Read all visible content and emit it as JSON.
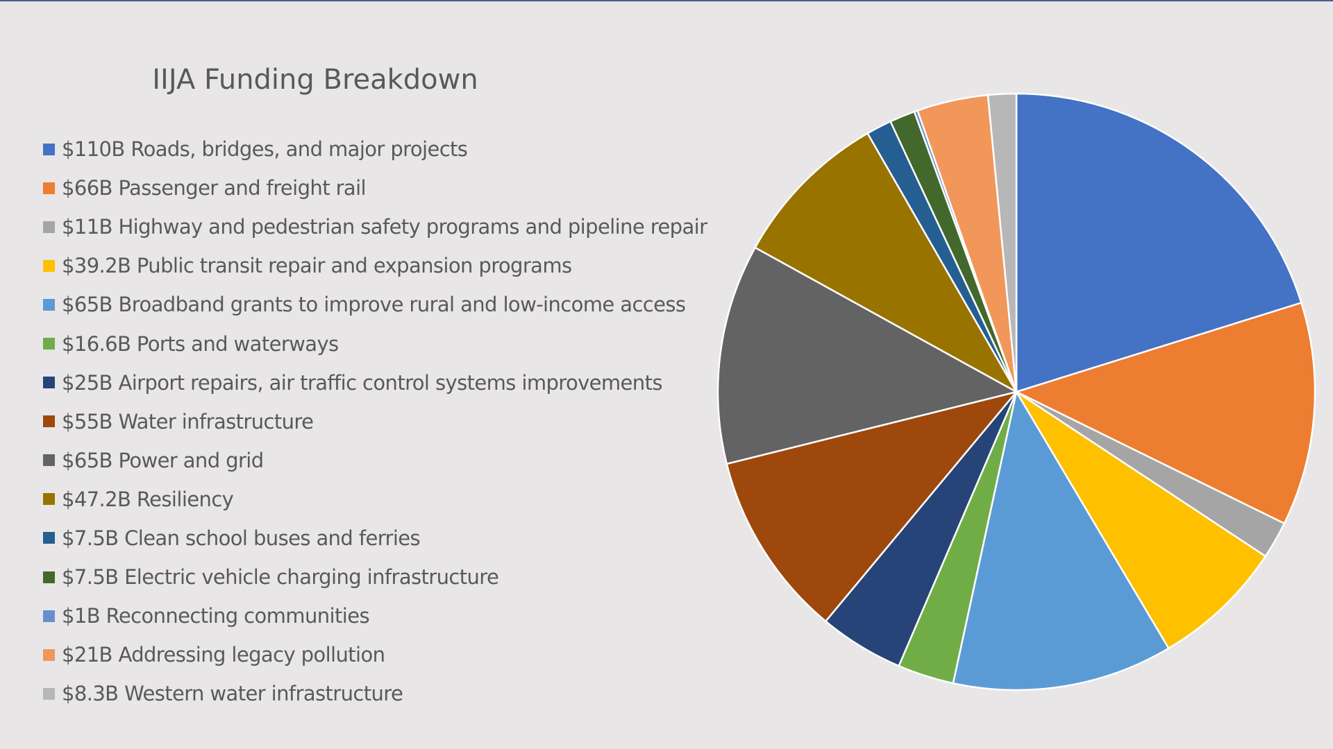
{
  "chart_data": {
    "type": "pie",
    "title": "IIJA Funding Breakdown",
    "legend_position": "left",
    "start_angle_deg": 0,
    "direction": "clockwise",
    "slice_border_color": "#ffffff",
    "categories": [
      "Roads, bridges, and major projects",
      "Passenger and freight rail",
      "Highway and pedestrian safety programs and pipeline repair",
      "Public transit repair and expansion programs",
      "Broadband grants to improve rural and low-income access",
      "Ports and waterways",
      "Airport repairs, air traffic control systems improvements",
      "Water infrastructure",
      "Power and grid",
      "Resiliency",
      "Clean school buses and ferries",
      "Electric vehicle charging infrastructure",
      "Reconnecting communities",
      "Addressing legacy pollution",
      "Western water infrastructure"
    ],
    "values": [
      110,
      66,
      11,
      39.2,
      65,
      16.6,
      25,
      55,
      65,
      47.2,
      7.5,
      7.5,
      1,
      21,
      8.3
    ],
    "units": "$B",
    "legend_labels": [
      "$110B Roads, bridges, and major projects",
      "$66B Passenger and freight rail",
      "$11B Highway and pedestrian safety programs and pipeline repair",
      "$39.2B Public transit repair and expansion programs",
      "$65B Broadband grants to improve rural and low-income access",
      "$16.6B Ports and waterways",
      "$25B Airport repairs, air traffic control systems improvements",
      "$55B Water infrastructure",
      "$65B Power and grid",
      "$47.2B Resiliency",
      "$7.5B Clean school buses and ferries",
      "$7.5B Electric vehicle charging infrastructure",
      "$1B Reconnecting communities",
      "$21B Addressing legacy pollution",
      "$8.3B Western water infrastructure"
    ],
    "colors": [
      "#4472c4",
      "#ed7d31",
      "#a5a5a5",
      "#ffc000",
      "#5b9bd5",
      "#70ad47",
      "#264478",
      "#9e480e",
      "#636363",
      "#997300",
      "#255e91",
      "#43682b",
      "#698ed0",
      "#f1975a",
      "#b7b7b7"
    ]
  }
}
